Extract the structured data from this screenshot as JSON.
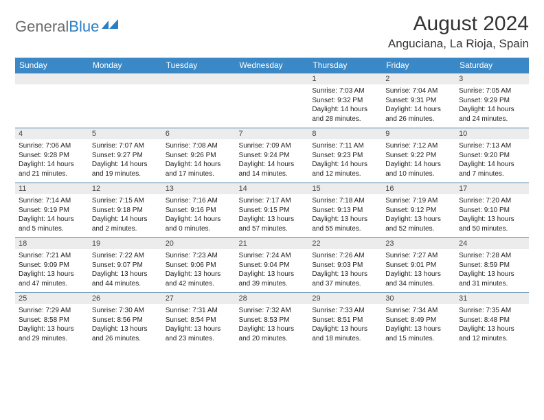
{
  "logo": {
    "word1": "General",
    "word2": "Blue"
  },
  "title": "August 2024",
  "location": "Anguciana, La Rioja, Spain",
  "colors": {
    "header_bg": "#3b88c7",
    "header_text": "#ffffff",
    "daynum_bg": "#ececec",
    "row_border": "#4a7fa8",
    "logo_gray": "#6b6b6b",
    "logo_blue": "#2a7ec4"
  },
  "day_names": [
    "Sunday",
    "Monday",
    "Tuesday",
    "Wednesday",
    "Thursday",
    "Friday",
    "Saturday"
  ],
  "weeks": [
    [
      {
        "empty": true
      },
      {
        "empty": true
      },
      {
        "empty": true
      },
      {
        "empty": true
      },
      {
        "n": "1",
        "sunrise": "7:03 AM",
        "sunset": "9:32 PM",
        "daylight": "14 hours and 28 minutes."
      },
      {
        "n": "2",
        "sunrise": "7:04 AM",
        "sunset": "9:31 PM",
        "daylight": "14 hours and 26 minutes."
      },
      {
        "n": "3",
        "sunrise": "7:05 AM",
        "sunset": "9:29 PM",
        "daylight": "14 hours and 24 minutes."
      }
    ],
    [
      {
        "n": "4",
        "sunrise": "7:06 AM",
        "sunset": "9:28 PM",
        "daylight": "14 hours and 21 minutes."
      },
      {
        "n": "5",
        "sunrise": "7:07 AM",
        "sunset": "9:27 PM",
        "daylight": "14 hours and 19 minutes."
      },
      {
        "n": "6",
        "sunrise": "7:08 AM",
        "sunset": "9:26 PM",
        "daylight": "14 hours and 17 minutes."
      },
      {
        "n": "7",
        "sunrise": "7:09 AM",
        "sunset": "9:24 PM",
        "daylight": "14 hours and 14 minutes."
      },
      {
        "n": "8",
        "sunrise": "7:11 AM",
        "sunset": "9:23 PM",
        "daylight": "14 hours and 12 minutes."
      },
      {
        "n": "9",
        "sunrise": "7:12 AM",
        "sunset": "9:22 PM",
        "daylight": "14 hours and 10 minutes."
      },
      {
        "n": "10",
        "sunrise": "7:13 AM",
        "sunset": "9:20 PM",
        "daylight": "14 hours and 7 minutes."
      }
    ],
    [
      {
        "n": "11",
        "sunrise": "7:14 AM",
        "sunset": "9:19 PM",
        "daylight": "14 hours and 5 minutes."
      },
      {
        "n": "12",
        "sunrise": "7:15 AM",
        "sunset": "9:18 PM",
        "daylight": "14 hours and 2 minutes."
      },
      {
        "n": "13",
        "sunrise": "7:16 AM",
        "sunset": "9:16 PM",
        "daylight": "14 hours and 0 minutes."
      },
      {
        "n": "14",
        "sunrise": "7:17 AM",
        "sunset": "9:15 PM",
        "daylight": "13 hours and 57 minutes."
      },
      {
        "n": "15",
        "sunrise": "7:18 AM",
        "sunset": "9:13 PM",
        "daylight": "13 hours and 55 minutes."
      },
      {
        "n": "16",
        "sunrise": "7:19 AM",
        "sunset": "9:12 PM",
        "daylight": "13 hours and 52 minutes."
      },
      {
        "n": "17",
        "sunrise": "7:20 AM",
        "sunset": "9:10 PM",
        "daylight": "13 hours and 50 minutes."
      }
    ],
    [
      {
        "n": "18",
        "sunrise": "7:21 AM",
        "sunset": "9:09 PM",
        "daylight": "13 hours and 47 minutes."
      },
      {
        "n": "19",
        "sunrise": "7:22 AM",
        "sunset": "9:07 PM",
        "daylight": "13 hours and 44 minutes."
      },
      {
        "n": "20",
        "sunrise": "7:23 AM",
        "sunset": "9:06 PM",
        "daylight": "13 hours and 42 minutes."
      },
      {
        "n": "21",
        "sunrise": "7:24 AM",
        "sunset": "9:04 PM",
        "daylight": "13 hours and 39 minutes."
      },
      {
        "n": "22",
        "sunrise": "7:26 AM",
        "sunset": "9:03 PM",
        "daylight": "13 hours and 37 minutes."
      },
      {
        "n": "23",
        "sunrise": "7:27 AM",
        "sunset": "9:01 PM",
        "daylight": "13 hours and 34 minutes."
      },
      {
        "n": "24",
        "sunrise": "7:28 AM",
        "sunset": "8:59 PM",
        "daylight": "13 hours and 31 minutes."
      }
    ],
    [
      {
        "n": "25",
        "sunrise": "7:29 AM",
        "sunset": "8:58 PM",
        "daylight": "13 hours and 29 minutes."
      },
      {
        "n": "26",
        "sunrise": "7:30 AM",
        "sunset": "8:56 PM",
        "daylight": "13 hours and 26 minutes."
      },
      {
        "n": "27",
        "sunrise": "7:31 AM",
        "sunset": "8:54 PM",
        "daylight": "13 hours and 23 minutes."
      },
      {
        "n": "28",
        "sunrise": "7:32 AM",
        "sunset": "8:53 PM",
        "daylight": "13 hours and 20 minutes."
      },
      {
        "n": "29",
        "sunrise": "7:33 AM",
        "sunset": "8:51 PM",
        "daylight": "13 hours and 18 minutes."
      },
      {
        "n": "30",
        "sunrise": "7:34 AM",
        "sunset": "8:49 PM",
        "daylight": "13 hours and 15 minutes."
      },
      {
        "n": "31",
        "sunrise": "7:35 AM",
        "sunset": "8:48 PM",
        "daylight": "13 hours and 12 minutes."
      }
    ]
  ],
  "labels": {
    "sunrise": "Sunrise: ",
    "sunset": "Sunset: ",
    "daylight": "Daylight: "
  }
}
